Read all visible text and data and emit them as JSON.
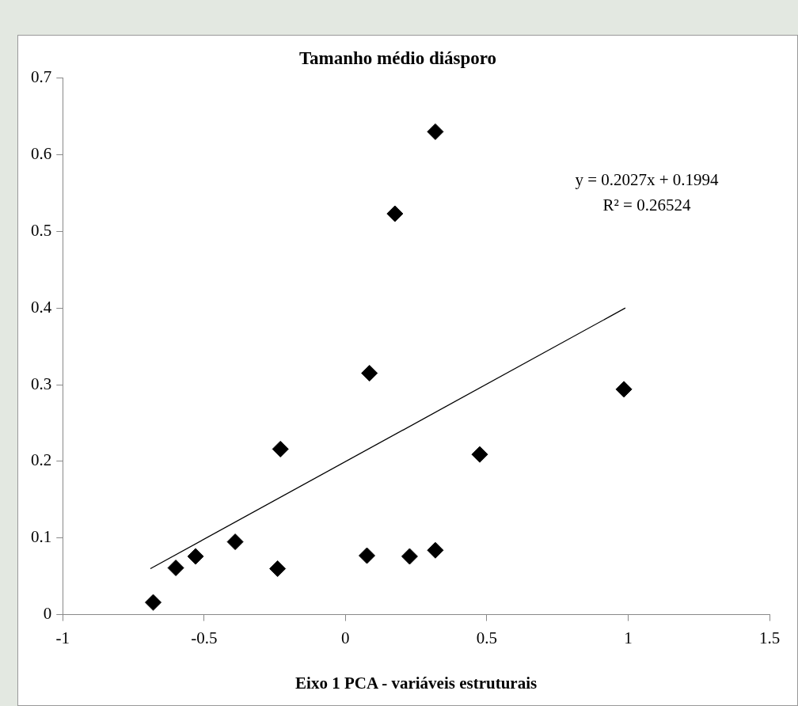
{
  "chart_data": {
    "type": "scatter",
    "title": "Tamanho médio diásporo",
    "xlabel": "Eixo 1 PCA - variáveis estruturais",
    "marker": "diamond",
    "series": [
      {
        "type": "scatter",
        "color": "#000000",
        "x": [
          -0.68,
          -0.6,
          -0.53,
          -0.39,
          -0.23,
          -0.24,
          0.085,
          0.076,
          0.175,
          0.227,
          0.318,
          0.318,
          0.475,
          0.985
        ],
        "values": [
          0.016,
          0.061,
          0.076,
          0.095,
          0.216,
          0.06,
          0.315,
          0.077,
          0.523,
          0.076,
          0.084,
          0.63,
          0.209,
          0.294
        ]
      },
      {
        "type": "line",
        "color": "#000000",
        "marker": "none",
        "x": [
          -0.69,
          0.99
        ],
        "values": [
          0.06,
          0.4
        ]
      }
    ],
    "annotations": [
      "y = 0.2027x + 0.1994",
      "R² = 0.26524"
    ],
    "xlim": [
      -1,
      1.5
    ],
    "xticks": [
      -1,
      -0.5,
      0,
      0.5,
      1,
      1.5
    ],
    "ylim": [
      0,
      0.7
    ],
    "yticks": [
      0,
      0.1,
      0.2,
      0.3,
      0.4,
      0.5,
      0.6,
      0.7
    ]
  }
}
